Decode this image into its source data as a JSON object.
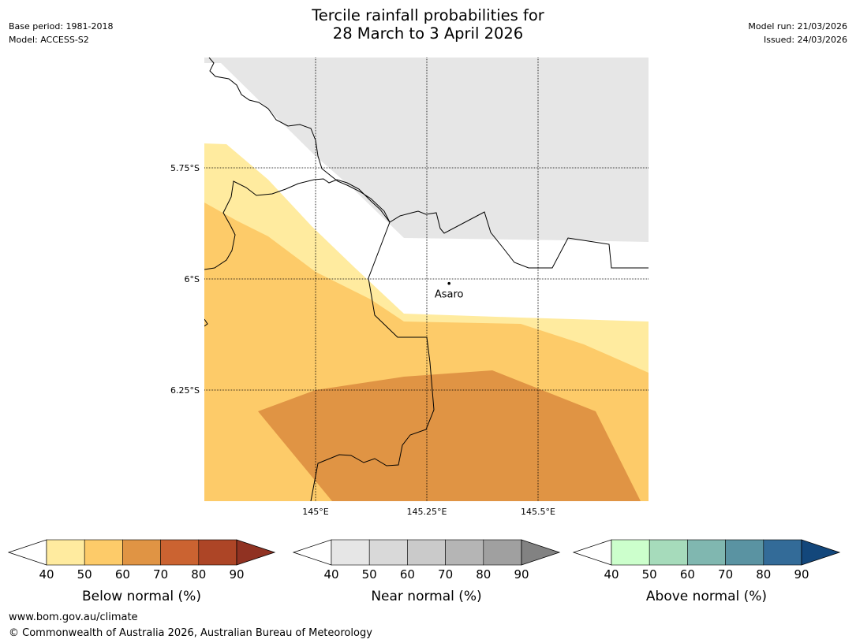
{
  "header": {
    "title_line1": "Tercile rainfall probabilities for",
    "title_line2": "28 March to 3 April 2026",
    "base_period": "Base period: 1981-2018",
    "model": "Model: ACCESS-S2",
    "model_run": "Model run: 21/03/2026",
    "issued": "Issued: 24/03/2026"
  },
  "map": {
    "lon_labels": [
      "145°E",
      "145.25°E",
      "145.5°E"
    ],
    "lat_labels": [
      "5.75°S",
      "6°S",
      "6.25°S"
    ],
    "place": {
      "name": "Asaro",
      "lon": 145.3,
      "lat": -6.01
    },
    "colors": {
      "nodata": "#e6e6e6",
      "below_40": "#ffeb9f",
      "below_50": "#fdcb69",
      "below_60": "#e09444"
    }
  },
  "colorbars": [
    {
      "title": "Below normal (%)",
      "ticks": [
        "40",
        "50",
        "60",
        "70",
        "80",
        "90"
      ],
      "colors": [
        "#ffeb9f",
        "#fdcb69",
        "#e09444",
        "#cb6331",
        "#ad4526"
      ],
      "over_color": "#903222"
    },
    {
      "title": "Near normal (%)",
      "ticks": [
        "40",
        "50",
        "60",
        "70",
        "80",
        "90"
      ],
      "colors": [
        "#e6e6e6",
        "#d9d9d9",
        "#cacaca",
        "#b5b5b5",
        "#a0a0a0"
      ],
      "over_color": "#828282"
    },
    {
      "title": "Above normal (%)",
      "ticks": [
        "40",
        "50",
        "60",
        "70",
        "80",
        "90"
      ],
      "colors": [
        "#ccffcc",
        "#a6dbbb",
        "#80b7b0",
        "#5a93a2",
        "#336b98"
      ],
      "over_color": "#13477b"
    }
  ],
  "footer": {
    "url": "www.bom.gov.au/climate",
    "copyright": "© Commonwealth of Australia 2026, Australian Bureau of Meteorology"
  }
}
